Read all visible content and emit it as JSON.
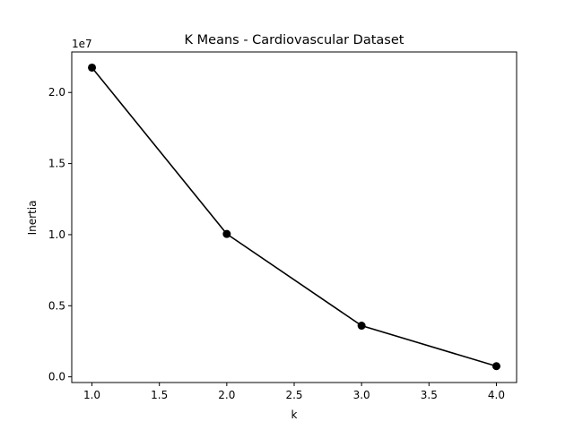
{
  "chart_data": {
    "type": "line",
    "title": "K Means - Cardiovascular Dataset",
    "xlabel": "k",
    "ylabel": "Inertia",
    "y_offset_label": "1e7",
    "x": [
      1.0,
      2.0,
      3.0,
      4.0
    ],
    "y": [
      21750000,
      10050000,
      3600000,
      750000
    ],
    "xlim": [
      0.85,
      4.15
    ],
    "ylim": [
      -400000,
      22850000
    ],
    "x_ticks": [
      1.0,
      1.5,
      2.0,
      2.5,
      3.0,
      3.5,
      4.0
    ],
    "x_tick_labels": [
      "1.0",
      "1.5",
      "2.0",
      "2.5",
      "3.0",
      "3.5",
      "4.0"
    ],
    "y_ticks": [
      0,
      5000000,
      10000000,
      15000000,
      20000000
    ],
    "y_tick_labels": [
      "0.0",
      "0.5",
      "1.0",
      "1.5",
      "2.0"
    ],
    "line_color": "#000000",
    "marker": "circle",
    "grid": false,
    "legend": "none"
  }
}
